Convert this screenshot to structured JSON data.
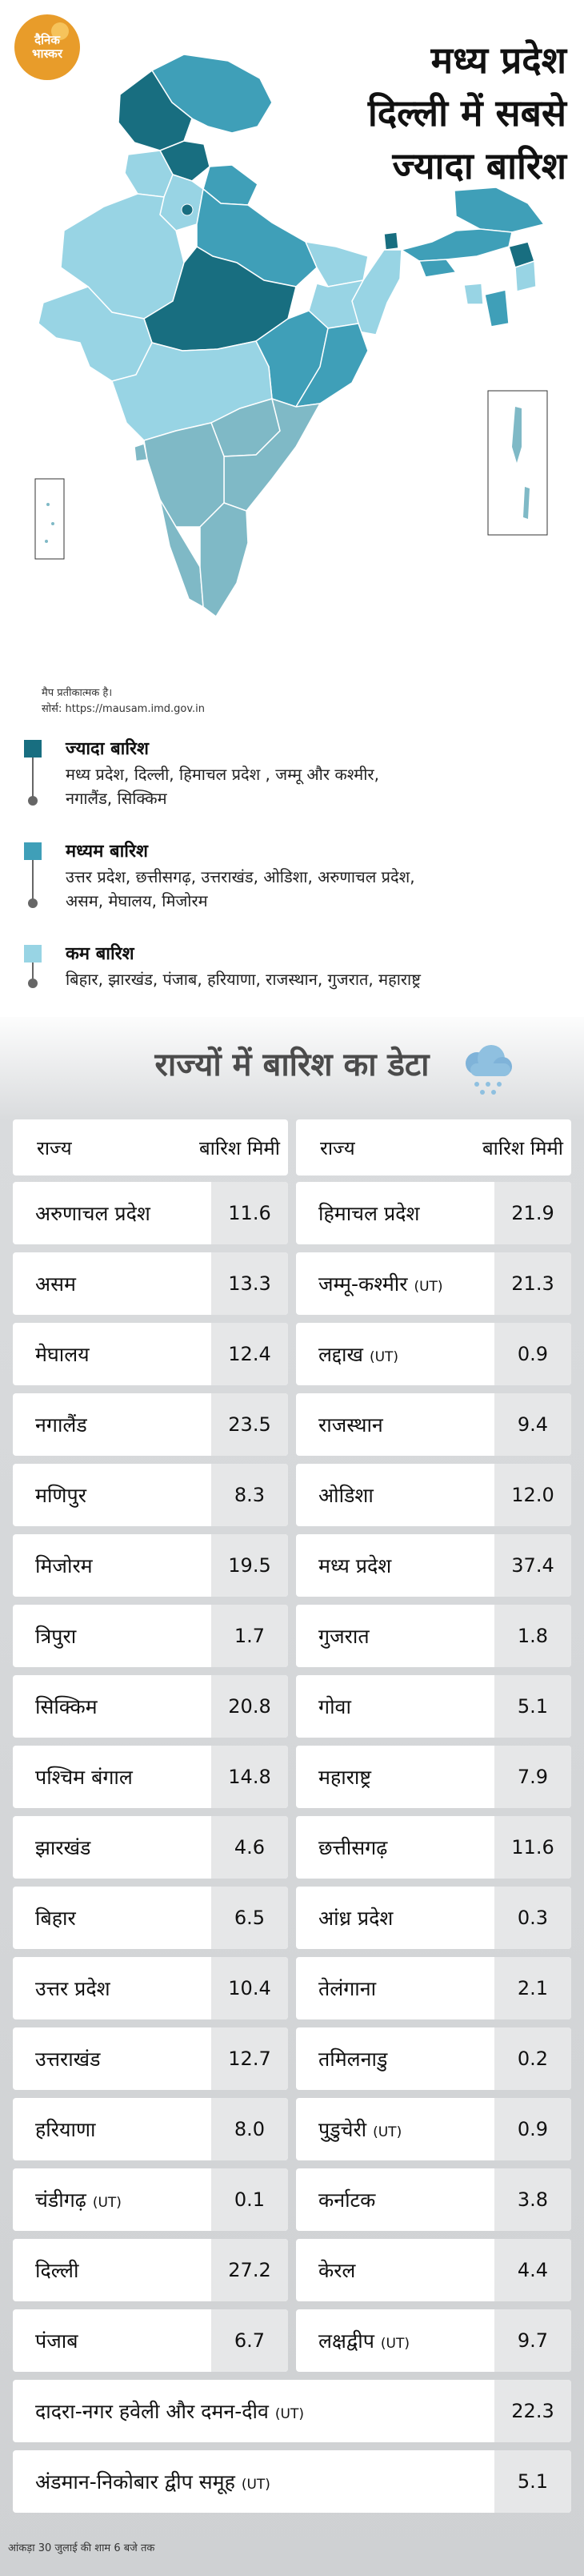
{
  "logo": {
    "line1": "दैनिक",
    "line2": "भास्कर"
  },
  "headline": {
    "line1": "मध्य प्रदेश",
    "line2": "दिल्ली में सबसे",
    "line3": "ज्यादा बारिश"
  },
  "map_note": {
    "line1": "मैप प्रतीकात्मक है।",
    "line2": "सोर्स: https://mausam.imd.gov.in"
  },
  "colors": {
    "high": "#186e80",
    "medium": "#3f9fb8",
    "low": "#98d4e4"
  },
  "legend": [
    {
      "title": "ज्यादा बारिश",
      "desc1": "मध्य प्रदेश, दिल्ली, हिमाचल प्रदेश , जम्मू और कश्मीर,",
      "desc2": "नगालैंड, सिक्किम"
    },
    {
      "title": "मध्यम बारिश",
      "desc1": "उत्तर प्रदेश, छत्तीसगढ़, उत्तराखंड, ओडिशा, अरुणाचल प्रदेश,",
      "desc2": "असम, मेघालय, मिजोरम"
    },
    {
      "title": "कम बारिश",
      "desc1": "बिहार, झारखंड, पंजाब, हरियाणा, राजस्थान, गुजरात, महाराष्ट्र",
      "desc2": ""
    }
  ],
  "table": {
    "title": "राज्यों में बारिश का डेटा",
    "col_state": "राज्य",
    "col_rain": "बारिश मिमी",
    "left": [
      {
        "name": "अरुणाचल प्रदेश",
        "tag": "",
        "value": "11.6"
      },
      {
        "name": "असम",
        "tag": "",
        "value": "13.3"
      },
      {
        "name": "मेघालय",
        "tag": "",
        "value": "12.4"
      },
      {
        "name": "नगालैंड",
        "tag": "",
        "value": "23.5"
      },
      {
        "name": "मणिपुर",
        "tag": "",
        "value": "8.3"
      },
      {
        "name": "मिजोरम",
        "tag": "",
        "value": "19.5"
      },
      {
        "name": "त्रिपुरा",
        "tag": "",
        "value": "1.7"
      },
      {
        "name": "सिक्किम",
        "tag": "",
        "value": "20.8"
      },
      {
        "name": "पश्चिम बंगाल",
        "tag": "",
        "value": "14.8"
      },
      {
        "name": "झारखंड",
        "tag": "",
        "value": "4.6"
      },
      {
        "name": "बिहार",
        "tag": "",
        "value": "6.5"
      },
      {
        "name": "उत्तर प्रदेश",
        "tag": "",
        "value": "10.4"
      },
      {
        "name": "उत्तराखंड",
        "tag": "",
        "value": "12.7"
      },
      {
        "name": "हरियाणा",
        "tag": "",
        "value": "8.0"
      },
      {
        "name": "चंडीगढ़",
        "tag": "(UT)",
        "value": "0.1"
      },
      {
        "name": "दिल्ली",
        "tag": "",
        "value": "27.2"
      },
      {
        "name": "पंजाब",
        "tag": "",
        "value": "6.7"
      }
    ],
    "right": [
      {
        "name": "हिमाचल प्रदेश",
        "tag": "",
        "value": "21.9"
      },
      {
        "name": "जम्मू-कश्मीर",
        "tag": "(UT)",
        "value": "21.3"
      },
      {
        "name": "लद्दाख",
        "tag": "(UT)",
        "value": "0.9"
      },
      {
        "name": "राजस्थान",
        "tag": "",
        "value": "9.4"
      },
      {
        "name": "ओडिशा",
        "tag": "",
        "value": "12.0"
      },
      {
        "name": "मध्य प्रदेश",
        "tag": "",
        "value": "37.4"
      },
      {
        "name": "गुजरात",
        "tag": "",
        "value": "1.8"
      },
      {
        "name": "गोवा",
        "tag": "",
        "value": "5.1"
      },
      {
        "name": "महाराष्ट्र",
        "tag": "",
        "value": "7.9"
      },
      {
        "name": "छत्तीसगढ़",
        "tag": "",
        "value": "11.6"
      },
      {
        "name": "आंध्र प्रदेश",
        "tag": "",
        "value": "0.3"
      },
      {
        "name": "तेलंगाना",
        "tag": "",
        "value": "2.1"
      },
      {
        "name": "तमिलनाडु",
        "tag": "",
        "value": "0.2"
      },
      {
        "name": "पुडुचेरी",
        "tag": "(UT)",
        "value": "0.9"
      },
      {
        "name": "कर्नाटक",
        "tag": "",
        "value": "3.8"
      },
      {
        "name": "केरल",
        "tag": "",
        "value": "4.4"
      },
      {
        "name": "लक्षद्वीप",
        "tag": "(UT)",
        "value": "9.7"
      }
    ],
    "full": [
      {
        "name": "दादरा-नगर हवेली और दमन-दीव",
        "tag": "(UT)",
        "value": "22.3"
      },
      {
        "name": "अंडमान-निकोबार द्वीप समूह",
        "tag": "(UT)",
        "value": "5.1"
      }
    ]
  },
  "footnote": "आंकड़ा 30 जुलाई की शाम 6 बजे तक"
}
